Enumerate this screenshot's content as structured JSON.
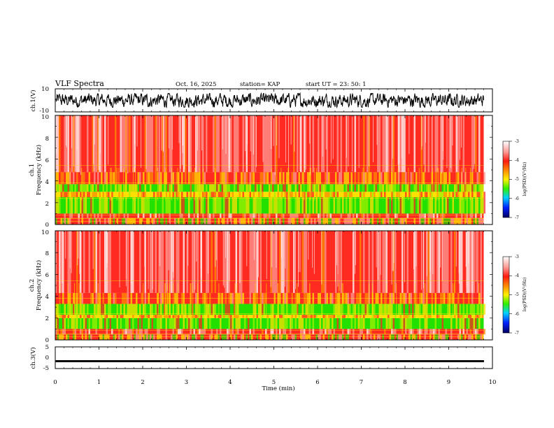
{
  "header": {
    "title": "VLF Spectra",
    "date": "Oct. 16, 2025",
    "station": "station= KAP",
    "start": "start  UT  =   23: 50: 1"
  },
  "colors": {
    "red": "#ff2a20",
    "pink": "#ff9a94",
    "white": "#ffffff",
    "yellow": "#ffe000",
    "orange": "#ff8c00",
    "green": "#22e000",
    "lime": "#a0f000",
    "trace": "#000000"
  },
  "chart_data": [
    {
      "type": "line",
      "name": "ch1-waveform",
      "ylabel": "ch.1(V)",
      "ylim": [
        -10,
        10
      ],
      "yticks": [
        "10",
        "-10"
      ],
      "xlim": [
        0,
        10
      ],
      "trace_end_min": 9.8,
      "amplitude_range_V": [
        -5,
        5
      ]
    },
    {
      "type": "heatmap",
      "name": "ch1-spectrogram",
      "ylabel": "ch.1\nFrequency  (kHz)",
      "ylim": [
        0,
        10
      ],
      "yticks": [
        "0",
        "2",
        "4",
        "6",
        "8",
        "10"
      ],
      "xlim": [
        0,
        10
      ],
      "data_end_min": 9.8,
      "bands_kHz": [
        {
          "from": 0.0,
          "to": 0.6,
          "level": "mixed"
        },
        {
          "from": 0.6,
          "to": 1.0,
          "level": "red"
        },
        {
          "from": 1.0,
          "to": 2.5,
          "level": "green-yellow"
        },
        {
          "from": 2.5,
          "to": 3.0,
          "level": "yellow"
        },
        {
          "from": 3.0,
          "to": 3.7,
          "level": "green-yellow"
        },
        {
          "from": 3.7,
          "to": 4.8,
          "level": "red-yellow"
        },
        {
          "from": 4.8,
          "to": 10.0,
          "level": "red"
        }
      ],
      "colorbar": {
        "label": "log(PSD)(V²/Hz)",
        "range": [
          -7,
          -3
        ],
        "ticks": [
          "-3",
          "-4",
          "-5",
          "-6",
          "-7"
        ]
      }
    },
    {
      "type": "heatmap",
      "name": "ch2-spectrogram",
      "ylabel": "ch.2\nFrequency  (kHz)",
      "ylim": [
        0,
        10
      ],
      "yticks": [
        "0",
        "2",
        "4",
        "6",
        "8",
        "10"
      ],
      "xlim": [
        0,
        10
      ],
      "data_end_min": 9.8,
      "bands_kHz": [
        {
          "from": 0.0,
          "to": 0.5,
          "level": "mixed"
        },
        {
          "from": 0.5,
          "to": 1.0,
          "level": "red"
        },
        {
          "from": 1.0,
          "to": 2.0,
          "level": "green-yellow"
        },
        {
          "from": 2.0,
          "to": 2.3,
          "level": "yellow"
        },
        {
          "from": 2.3,
          "to": 3.3,
          "level": "green-yellow"
        },
        {
          "from": 3.3,
          "to": 4.3,
          "level": "red-yellow"
        },
        {
          "from": 4.3,
          "to": 10.0,
          "level": "red"
        }
      ],
      "colorbar": {
        "label": "log(PSD)(V²/Hz)",
        "range": [
          -7,
          -3
        ],
        "ticks": [
          "-3",
          "-4",
          "-5",
          "-6",
          "-7"
        ]
      }
    },
    {
      "type": "line",
      "name": "ch3-waveform",
      "ylabel": "ch.3(V)",
      "ylim": [
        -5,
        5
      ],
      "yticks": [
        "5",
        "0",
        "-5"
      ],
      "xlim": [
        0,
        10
      ],
      "trace_end_min": 9.8,
      "level_V": -1.6,
      "amplitude_V": 0.35
    }
  ],
  "xaxis": {
    "label": "Time  (min)",
    "ticks": [
      "0",
      "1",
      "2",
      "3",
      "4",
      "5",
      "6",
      "7",
      "8",
      "9",
      "10"
    ]
  }
}
